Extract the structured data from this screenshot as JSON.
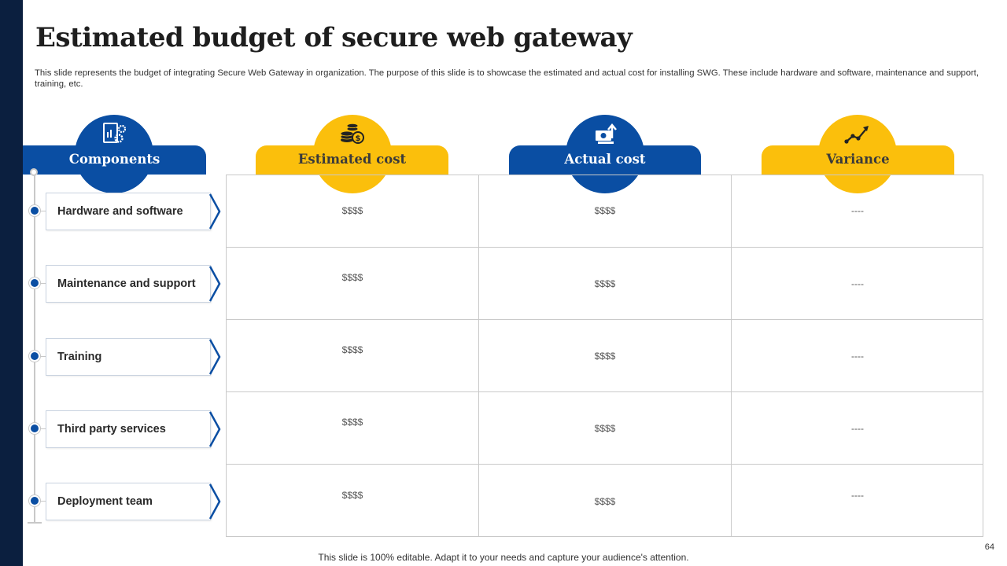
{
  "title": "Estimated budget of secure web gateway",
  "subtitle": "This slide represents the budget of integrating Secure Web Gateway in organization. The purpose of this slide is to showcase the estimated and actual cost for installing SWG. These include hardware and software, maintenance and support, training, etc.",
  "headers": {
    "components": "Components",
    "estimated": "Estimated cost",
    "actual": "Actual cost",
    "variance": "Variance"
  },
  "icons": {
    "components": "settings-chart-icon",
    "estimated": "coins-dollar-icon",
    "actual": "money-growth-icon",
    "variance": "trend-line-icon"
  },
  "colors": {
    "blue": "#0a4ea3",
    "yellow": "#fbbf0c",
    "sidebar": "#0b1f3f"
  },
  "rows": [
    {
      "component": "Hardware and software",
      "estimated": "$$$$",
      "actual": "$$$$",
      "variance": "----"
    },
    {
      "component": "Maintenance and support",
      "estimated": "$$$$",
      "actual": "$$$$",
      "variance": "----"
    },
    {
      "component": "Training",
      "estimated": "$$$$",
      "actual": "$$$$",
      "variance": "----"
    },
    {
      "component": "Third party services",
      "estimated": "$$$$",
      "actual": "$$$$",
      "variance": "----"
    },
    {
      "component": "Deployment team",
      "estimated": "$$$$",
      "actual": "$$$$",
      "variance": "----"
    }
  ],
  "footer": "This slide is 100% editable. Adapt it to your needs and capture your audience's attention.",
  "page_number": "64"
}
